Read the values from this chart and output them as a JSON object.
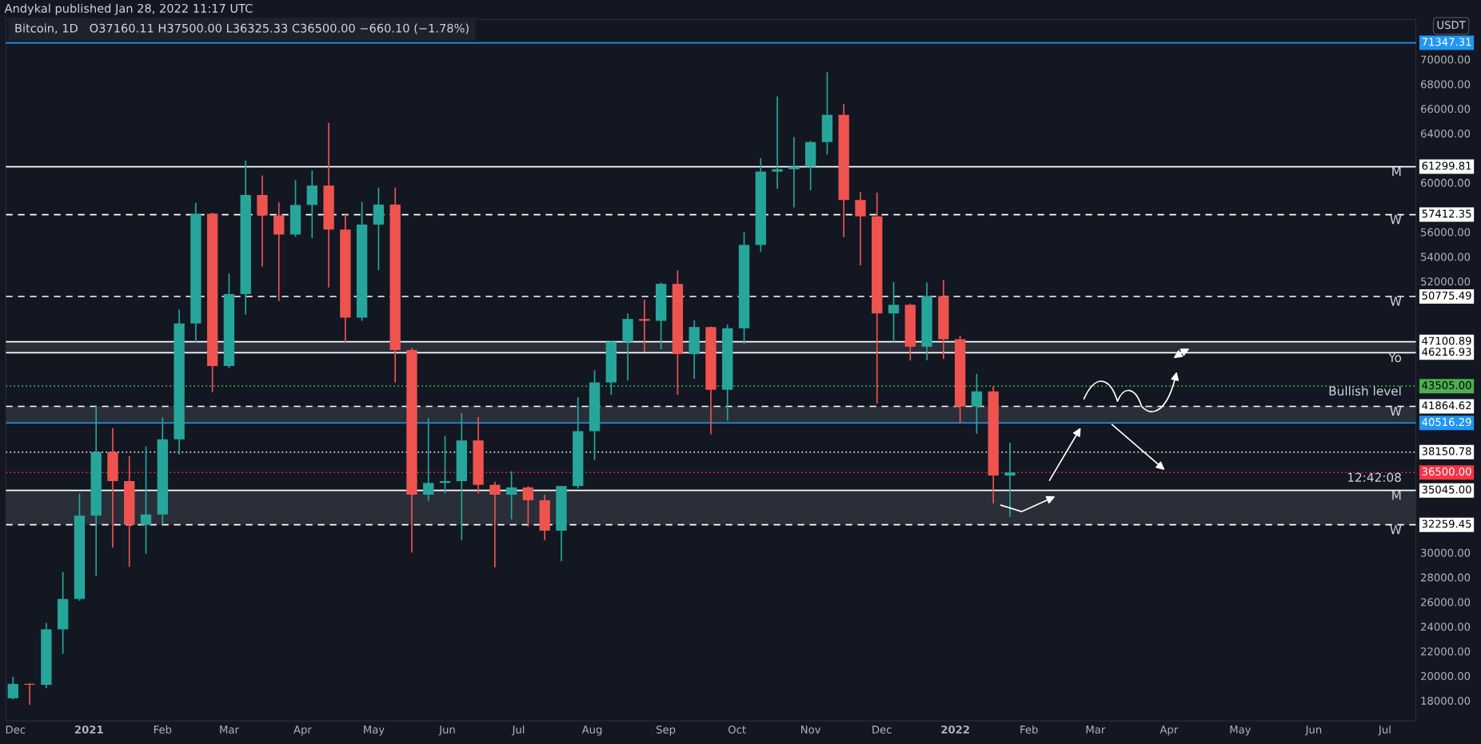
{
  "chart_data": {
    "type": "candlestick",
    "title": "Bitcoin, 1D",
    "subtitle": "O37160.11 H37500.00 L36325.33 C36500.00 −660.10 (−1.78%)",
    "ylabel": "USDT",
    "annotations": [
      "Andykal published Jan 28, 2022 11:17 UTC",
      {
        "text": "M",
        "y": 61299.81
      },
      {
        "text": "W",
        "y": 57412.35
      },
      {
        "text": "W",
        "y": 50775.49
      },
      {
        "text": "Yo",
        "y": 46216.93
      },
      {
        "text": "Bullish level",
        "y": 43505.0
      },
      {
        "text": "W",
        "y": 41864.62
      },
      {
        "text": "12:42:08",
        "y": 36500.0
      },
      {
        "text": "M",
        "y": 35045.0
      },
      {
        "text": "W",
        "y": 32259.45
      }
    ],
    "x": [
      "2020-11-30",
      "2020-12-07",
      "2020-12-14",
      "2020-12-21",
      "2020-12-28",
      "2021-01-04",
      "2021-01-11",
      "2021-01-18",
      "2021-01-25",
      "2021-02-01",
      "2021-02-08",
      "2021-02-15",
      "2021-02-22",
      "2021-03-01",
      "2021-03-08",
      "2021-03-15",
      "2021-03-22",
      "2021-03-29",
      "2021-04-05",
      "2021-04-12",
      "2021-04-19",
      "2021-04-26",
      "2021-05-03",
      "2021-05-10",
      "2021-05-17",
      "2021-05-24",
      "2021-05-31",
      "2021-06-07",
      "2021-06-14",
      "2021-06-21",
      "2021-06-28",
      "2021-07-05",
      "2021-07-12",
      "2021-07-19",
      "2021-07-26",
      "2021-08-02",
      "2021-08-09",
      "2021-08-16",
      "2021-08-23",
      "2021-08-30",
      "2021-09-06",
      "2021-09-13",
      "2021-09-20",
      "2021-09-27",
      "2021-10-04",
      "2021-10-11",
      "2021-10-18",
      "2021-10-25",
      "2021-11-01",
      "2021-11-08",
      "2021-11-15",
      "2021-11-22",
      "2021-11-29",
      "2021-12-06",
      "2021-12-13",
      "2021-12-20",
      "2021-12-27",
      "2022-01-03",
      "2022-01-10",
      "2022-01-17",
      "2022-01-24"
    ],
    "ohlc": [
      [
        18185,
        19918,
        18100,
        19360
      ],
      [
        19360,
        19420,
        17650,
        19270
      ],
      [
        19270,
        24300,
        19000,
        23780
      ],
      [
        23780,
        28420,
        21800,
        26250
      ],
      [
        26250,
        34780,
        26100,
        33000
      ],
      [
        33000,
        41950,
        28130,
        38150
      ],
      [
        38150,
        40100,
        30400,
        35800
      ],
      [
        35800,
        37850,
        28850,
        32250
      ],
      [
        32250,
        38600,
        29900,
        33090
      ],
      [
        33090,
        40950,
        32300,
        39190
      ],
      [
        39190,
        49700,
        37950,
        48590
      ],
      [
        48590,
        58350,
        47000,
        57480
      ],
      [
        57480,
        57580,
        43000,
        45140
      ],
      [
        45140,
        52640,
        44950,
        50970
      ],
      [
        50970,
        61800,
        49300,
        59000
      ],
      [
        59000,
        60600,
        53200,
        57350
      ],
      [
        57350,
        58400,
        50400,
        55800
      ],
      [
        55800,
        60200,
        55600,
        58200
      ],
      [
        58200,
        61000,
        55500,
        59770
      ],
      [
        59770,
        64850,
        51500,
        56200
      ],
      [
        56200,
        57500,
        47000,
        49050
      ],
      [
        49050,
        58450,
        48800,
        56600
      ],
      [
        56600,
        59600,
        52900,
        58230
      ],
      [
        58230,
        59600,
        43800,
        46430
      ],
      [
        46430,
        46600,
        30000,
        34700
      ],
      [
        34700,
        40900,
        34200,
        35650
      ],
      [
        35650,
        39480,
        34800,
        35800
      ],
      [
        35800,
        41300,
        31000,
        39100
      ],
      [
        39100,
        41000,
        34800,
        35500
      ],
      [
        35500,
        35750,
        28800,
        34700
      ],
      [
        34700,
        36600,
        32700,
        35290
      ],
      [
        35290,
        35400,
        32100,
        34250
      ],
      [
        34250,
        34700,
        31000,
        31780
      ],
      [
        31780,
        35400,
        29300,
        35400
      ],
      [
        35400,
        42600,
        35200,
        39850
      ],
      [
        39850,
        44800,
        37500,
        43800
      ],
      [
        43800,
        47150,
        42800,
        47100
      ],
      [
        47100,
        49400,
        43950,
        48950
      ],
      [
        48950,
        50500,
        46300,
        48800
      ],
      [
        48800,
        51900,
        46500,
        51800
      ],
      [
        51800,
        52900,
        42800,
        46100
      ],
      [
        46100,
        48850,
        44100,
        48300
      ],
      [
        48300,
        48350,
        39600,
        43200
      ],
      [
        43200,
        48500,
        40700,
        48200
      ],
      [
        48200,
        56000,
        46900,
        54950
      ],
      [
        54950,
        62000,
        54400,
        60900
      ],
      [
        60900,
        67000,
        59500,
        61100
      ],
      [
        61100,
        63700,
        58000,
        61300
      ],
      [
        61300,
        63400,
        59400,
        63300
      ],
      [
        63300,
        68950,
        62300,
        65500
      ],
      [
        65500,
        66400,
        55600,
        58600
      ],
      [
        58600,
        59250,
        53300,
        57270
      ],
      [
        57270,
        59200,
        42090,
        49400
      ],
      [
        49400,
        51950,
        47100,
        50100
      ],
      [
        50100,
        50200,
        45570,
        46700
      ],
      [
        46700,
        51900,
        45600,
        50800
      ],
      [
        50800,
        52100,
        45700,
        47300
      ],
      [
        47300,
        47600,
        40500,
        41850
      ],
      [
        41850,
        44500,
        39650,
        43080
      ],
      [
        43080,
        43500,
        34000,
        36250
      ],
      [
        36250,
        38900,
        32900,
        36500
      ]
    ],
    "colors": [
      "#26a69a",
      "#ef5350",
      "#26a69a",
      "#26a69a",
      "#26a69a",
      "#26a69a",
      "#ef5350",
      "#ef5350",
      "#26a69a",
      "#26a69a",
      "#26a69a",
      "#26a69a",
      "#ef5350",
      "#26a69a",
      "#26a69a",
      "#ef5350",
      "#ef5350",
      "#26a69a",
      "#26a69a",
      "#ef5350",
      "#ef5350",
      "#26a69a",
      "#26a69a",
      "#ef5350",
      "#ef5350",
      "#26a69a",
      "#26a69a",
      "#26a69a",
      "#ef5350",
      "#ef5350",
      "#26a69a",
      "#ef5350",
      "#ef5350",
      "#26a69a",
      "#26a69a",
      "#26a69a",
      "#26a69a",
      "#26a69a",
      "#ef5350",
      "#26a69a",
      "#ef5350",
      "#26a69a",
      "#ef5350",
      "#26a69a",
      "#26a69a",
      "#26a69a",
      "#26a69a",
      "#26a69a",
      "#26a69a",
      "#26a69a",
      "#ef5350",
      "#ef5350",
      "#ef5350",
      "#26a69a",
      "#ef5350",
      "#26a69a",
      "#ef5350",
      "#ef5350",
      "#26a69a",
      "#ef5350",
      "#26a69a"
    ],
    "xlim": [
      "2020-11-27",
      "2022-07-14"
    ],
    "xticks": [
      {
        "value": "2020-12-01",
        "label": "Dec"
      },
      {
        "value": "2021-01-01",
        "label": "2021"
      },
      {
        "value": "2021-02-01",
        "label": "Feb"
      },
      {
        "value": "2021-03-01",
        "label": "Mar"
      },
      {
        "value": "2021-04-01",
        "label": "Apr"
      },
      {
        "value": "2021-05-01",
        "label": "May"
      },
      {
        "value": "2021-06-01",
        "label": "Jun"
      },
      {
        "value": "2021-07-01",
        "label": "Jul"
      },
      {
        "value": "2021-08-01",
        "label": "Aug"
      },
      {
        "value": "2021-09-01",
        "label": "Sep"
      },
      {
        "value": "2021-10-01",
        "label": "Oct"
      },
      {
        "value": "2021-11-01",
        "label": "Nov"
      },
      {
        "value": "2021-12-01",
        "label": "Dec"
      },
      {
        "value": "2022-01-01",
        "label": "2022"
      },
      {
        "value": "2022-02-01",
        "label": "Feb"
      },
      {
        "value": "2022-03-01",
        "label": "Mar"
      },
      {
        "value": "2022-04-01",
        "label": "Apr"
      },
      {
        "value": "2022-05-01",
        "label": "May"
      },
      {
        "value": "2022-06-01",
        "label": "Jun"
      },
      {
        "value": "2022-07-01",
        "label": "Jul"
      }
    ],
    "ylim": [
      16350,
      73250
    ],
    "yticks": [
      {
        "value": 18000,
        "label": "18000.00"
      },
      {
        "value": 20000,
        "label": "20000.00"
      },
      {
        "value": 22000,
        "label": "22000.00"
      },
      {
        "value": 24000,
        "label": "24000.00"
      },
      {
        "value": 26000,
        "label": "26000.00"
      },
      {
        "value": 28000,
        "label": "28000.00"
      },
      {
        "value": 30000,
        "label": "30000.00"
      },
      {
        "value": 52000,
        "label": "52000.00"
      },
      {
        "value": 54000,
        "label": "54000.00"
      },
      {
        "value": 56000,
        "label": "56000.00"
      },
      {
        "value": 60000,
        "label": "60000.00"
      },
      {
        "value": 64000,
        "label": "64000.00"
      },
      {
        "value": 66000,
        "label": "66000.00"
      },
      {
        "value": 68000,
        "label": "68000.00"
      },
      {
        "value": 70000,
        "label": "70000.00"
      }
    ],
    "ref_lines": [
      {
        "axis": "y",
        "value": 71347.31,
        "label": "71347.31",
        "color": "#2196f3",
        "line_style": "solid"
      },
      {
        "axis": "y",
        "value": 61299.81,
        "label": "61299.81",
        "color": "#ffffff",
        "line_style": "solid"
      },
      {
        "axis": "y",
        "value": 57412.35,
        "label": "57412.35",
        "color": "#ffffff",
        "line_style": "dashed"
      },
      {
        "axis": "y",
        "value": 50775.49,
        "label": "50775.49",
        "color": "#ffffff",
        "line_style": "dashed"
      },
      {
        "axis": "y",
        "value": 47100.89,
        "label": "47100.89",
        "color": "#ffffff",
        "line_style": "solid"
      },
      {
        "axis": "y",
        "value": 46216.93,
        "label": "46216.93",
        "color": "#ffffff",
        "line_style": "solid"
      },
      {
        "axis": "y",
        "value": 43505.0,
        "label": "43505.00",
        "color": "#4caf50",
        "line_style": "dotted"
      },
      {
        "axis": "y",
        "value": 41864.62,
        "label": "41864.62",
        "color": "#ffffff",
        "line_style": "dashed"
      },
      {
        "axis": "y",
        "value": 40516.29,
        "label": "40516.29",
        "color": "#2196f3",
        "line_style": "solid"
      },
      {
        "axis": "y",
        "value": 38150.78,
        "label": "38150.78",
        "color": "#ffffff",
        "line_style": "dotted"
      },
      {
        "axis": "y",
        "value": 36500.0,
        "label": "36500.00",
        "color": "#f23645",
        "line_style": "dotted"
      },
      {
        "axis": "y",
        "value": 35045.0,
        "label": "35045.00",
        "color": "#ffffff",
        "line_style": "solid"
      },
      {
        "axis": "y",
        "value": 32259.45,
        "label": "32259.45",
        "color": "#ffffff",
        "line_style": "dashed"
      }
    ],
    "bands": [
      {
        "axis": "y",
        "from": 32259.45,
        "to": 35045.0,
        "label": null,
        "color": "#2a2e39"
      },
      {
        "axis": "y",
        "from": 40516.29,
        "to": 41864.62,
        "label": null,
        "color": "#2a2e39"
      },
      {
        "axis": "y",
        "from": 46216.93,
        "to": 47100.89,
        "label": null,
        "color": "#2a2e39"
      }
    ],
    "grid": false
  }
}
